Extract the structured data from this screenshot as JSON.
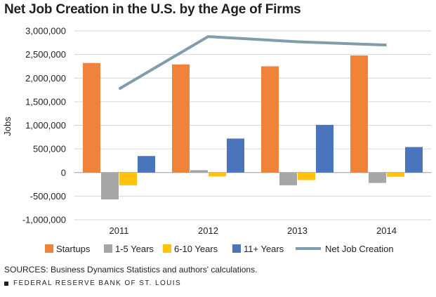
{
  "chart_data": {
    "type": "bar",
    "title": "Net Job Creation in the U.S. by the Age of Firms",
    "xlabel": "",
    "ylabel": "Jobs",
    "ylim": [
      -1000000,
      3000000
    ],
    "yticks": [
      3000000,
      2500000,
      2000000,
      1500000,
      1000000,
      500000,
      0,
      -500000,
      -1000000
    ],
    "ytick_labels": [
      "3,000,000",
      "2,500,000",
      "2,000,000",
      "1,500,000",
      "1,000,000",
      "500,000",
      "0",
      "-500,000",
      "-1,000,000"
    ],
    "grid": true,
    "legend_position": "bottom",
    "categories": [
      "2011",
      "2012",
      "2013",
      "2014"
    ],
    "series": [
      {
        "name": "Startups",
        "type": "bar",
        "color": "#f0823a",
        "values": [
          2320000,
          2290000,
          2250000,
          2480000
        ]
      },
      {
        "name": "1-5 Years",
        "type": "bar",
        "color": "#a6a6a6",
        "values": [
          -570000,
          50000,
          -270000,
          -220000
        ]
      },
      {
        "name": "6-10 Years",
        "type": "bar",
        "color": "#ffc20e",
        "values": [
          -270000,
          -80000,
          -160000,
          -90000
        ]
      },
      {
        "name": "11+ Years",
        "type": "bar",
        "color": "#4a74bb",
        "values": [
          350000,
          720000,
          1010000,
          540000
        ]
      },
      {
        "name": "Net Job Creation",
        "type": "line",
        "color": "#7f9daa",
        "values": [
          1770000,
          2880000,
          2770000,
          2700000
        ]
      }
    ]
  },
  "source_note": "SOURCES: Business Dynamics Statistics and authors' calculations.",
  "publisher": "FEDERAL RESERVE BANK OF ST. LOUIS"
}
